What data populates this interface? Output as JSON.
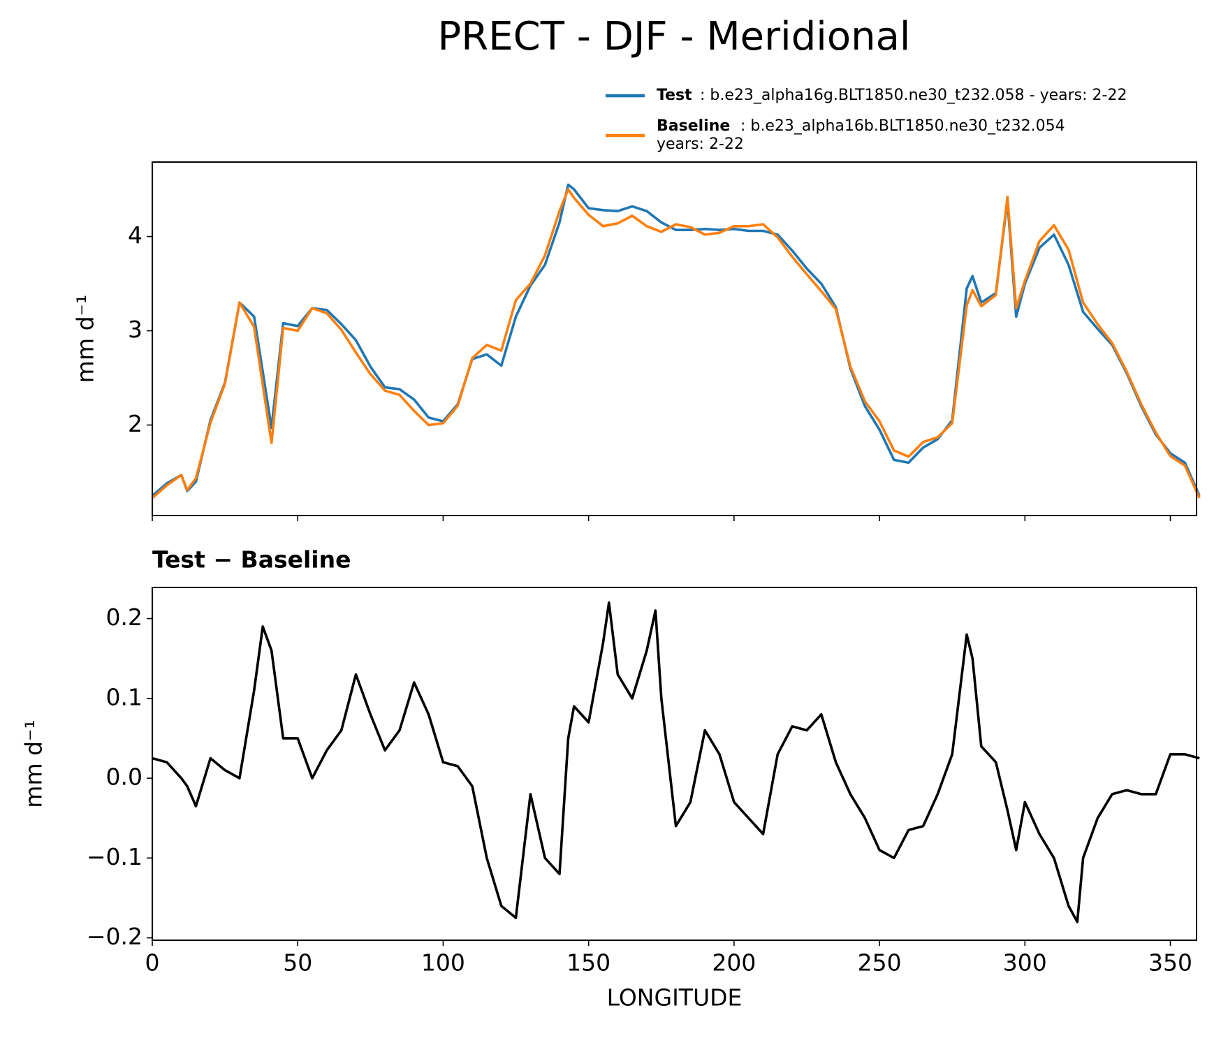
{
  "title": "PRECT - DJF - Meridional",
  "chart_data": [
    {
      "type": "line",
      "ylabel": "mm d⁻¹",
      "x": [
        0,
        5,
        10,
        12,
        15,
        20,
        25,
        30,
        35,
        41,
        45,
        50,
        55,
        60,
        65,
        70,
        75,
        80,
        85,
        90,
        95,
        100,
        105,
        110,
        115,
        120,
        125,
        130,
        135,
        140,
        143,
        145,
        150,
        155,
        160,
        165,
        170,
        175,
        180,
        185,
        190,
        195,
        200,
        205,
        210,
        215,
        220,
        225,
        230,
        235,
        240,
        245,
        250,
        255,
        260,
        265,
        270,
        275,
        280,
        282,
        285,
        290,
        294,
        297,
        300,
        305,
        310,
        315,
        320,
        325,
        330,
        335,
        340,
        345,
        350,
        355,
        360
      ],
      "series": [
        {
          "name": "Test",
          "legend_lines": [
            ": b.e23_alpha16g.BLT1850.ne30_t232.058 - years: 2-22"
          ],
          "color": "#1f77b4",
          "values": [
            1.25,
            1.38,
            1.47,
            1.3,
            1.4,
            2.05,
            2.45,
            3.3,
            3.15,
            1.97,
            3.08,
            3.05,
            3.24,
            3.22,
            3.07,
            2.9,
            2.62,
            2.4,
            2.38,
            2.27,
            2.08,
            2.04,
            2.22,
            2.7,
            2.75,
            2.63,
            3.15,
            3.48,
            3.7,
            4.15,
            4.55,
            4.5,
            4.3,
            4.28,
            4.27,
            4.32,
            4.27,
            4.15,
            4.07,
            4.07,
            4.08,
            4.07,
            4.08,
            4.06,
            4.06,
            4.02,
            3.85,
            3.66,
            3.5,
            3.25,
            2.6,
            2.2,
            1.95,
            1.63,
            1.6,
            1.76,
            1.85,
            2.05,
            3.45,
            3.58,
            3.3,
            3.4,
            4.38,
            3.15,
            3.5,
            3.88,
            4.02,
            3.7,
            3.2,
            3.02,
            2.85,
            2.55,
            2.2,
            1.9,
            1.7,
            1.6,
            1.25
          ]
        },
        {
          "name": "Baseline",
          "legend_lines": [
            ": b.e23_alpha16b.BLT1850.ne30_t232.054",
            "years: 2-22"
          ],
          "color": "#ff7f0e",
          "values": [
            1.225,
            1.36,
            1.47,
            1.31,
            1.435,
            2.025,
            2.44,
            3.3,
            3.04,
            1.81,
            3.03,
            3.0,
            3.24,
            3.185,
            3.01,
            2.77,
            2.54,
            2.365,
            2.32,
            2.15,
            2.0,
            2.02,
            2.205,
            2.71,
            2.85,
            2.79,
            3.325,
            3.5,
            3.8,
            4.27,
            4.5,
            4.41,
            4.23,
            4.11,
            4.14,
            4.22,
            4.11,
            4.05,
            4.13,
            4.1,
            4.02,
            4.04,
            4.11,
            4.11,
            4.13,
            3.99,
            3.785,
            3.6,
            3.42,
            3.23,
            2.62,
            2.25,
            2.04,
            1.73,
            1.665,
            1.82,
            1.87,
            2.02,
            3.27,
            3.43,
            3.26,
            3.38,
            4.42,
            3.24,
            3.53,
            3.95,
            4.12,
            3.86,
            3.3,
            3.07,
            2.87,
            2.565,
            2.22,
            1.92,
            1.67,
            1.57,
            1.225
          ]
        }
      ],
      "xlim": [
        0,
        359
      ],
      "xticks": [
        0,
        50,
        100,
        150,
        200,
        250,
        300,
        350
      ],
      "ylim": [
        1.04,
        4.79
      ],
      "yticks": [
        2,
        3,
        4
      ],
      "legend": "upper right"
    },
    {
      "type": "line",
      "title": "Test − Baseline",
      "xlabel": "LONGITUDE",
      "ylabel": "mm d⁻¹",
      "color": "#000000",
      "x": [
        0,
        5,
        10,
        12,
        15,
        20,
        25,
        30,
        35,
        38,
        41,
        45,
        50,
        55,
        60,
        65,
        70,
        75,
        80,
        85,
        90,
        95,
        100,
        105,
        110,
        115,
        120,
        125,
        130,
        135,
        140,
        143,
        145,
        150,
        155,
        157,
        160,
        165,
        170,
        173,
        175,
        180,
        185,
        190,
        195,
        200,
        205,
        210,
        215,
        220,
        225,
        230,
        235,
        240,
        245,
        250,
        255,
        260,
        265,
        270,
        275,
        280,
        282,
        285,
        290,
        294,
        297,
        300,
        305,
        310,
        315,
        318,
        320,
        325,
        330,
        335,
        340,
        345,
        350,
        355,
        360
      ],
      "values": [
        0.025,
        0.02,
        0.0,
        -0.01,
        -0.035,
        0.025,
        0.01,
        0.0,
        0.11,
        0.19,
        0.16,
        0.05,
        0.05,
        0.0,
        0.035,
        0.06,
        0.13,
        0.08,
        0.035,
        0.06,
        0.12,
        0.08,
        0.02,
        0.015,
        -0.01,
        -0.1,
        -0.16,
        -0.175,
        -0.02,
        -0.1,
        -0.12,
        0.05,
        0.09,
        0.07,
        0.17,
        0.22,
        0.13,
        0.1,
        0.16,
        0.21,
        0.1,
        -0.06,
        -0.03,
        0.06,
        0.03,
        -0.03,
        -0.05,
        -0.07,
        0.03,
        0.065,
        0.06,
        0.08,
        0.02,
        -0.02,
        -0.05,
        -0.09,
        -0.1,
        -0.065,
        -0.06,
        -0.02,
        0.03,
        0.18,
        0.15,
        0.04,
        0.02,
        -0.04,
        -0.09,
        -0.03,
        -0.07,
        -0.1,
        -0.16,
        -0.18,
        -0.1,
        -0.05,
        -0.02,
        -0.015,
        -0.02,
        -0.02,
        0.03,
        0.03,
        0.025
      ],
      "xlim": [
        0,
        359
      ],
      "xticks": [
        0,
        50,
        100,
        150,
        200,
        250,
        300,
        350
      ],
      "ylim": [
        -0.203,
        0.239
      ],
      "yticks": [
        {
          "value": -0.2,
          "label": "−0.2"
        },
        {
          "value": -0.1,
          "label": "−0.1"
        },
        {
          "value": 0,
          "label": "0.0"
        },
        0.1,
        0.2
      ]
    }
  ]
}
